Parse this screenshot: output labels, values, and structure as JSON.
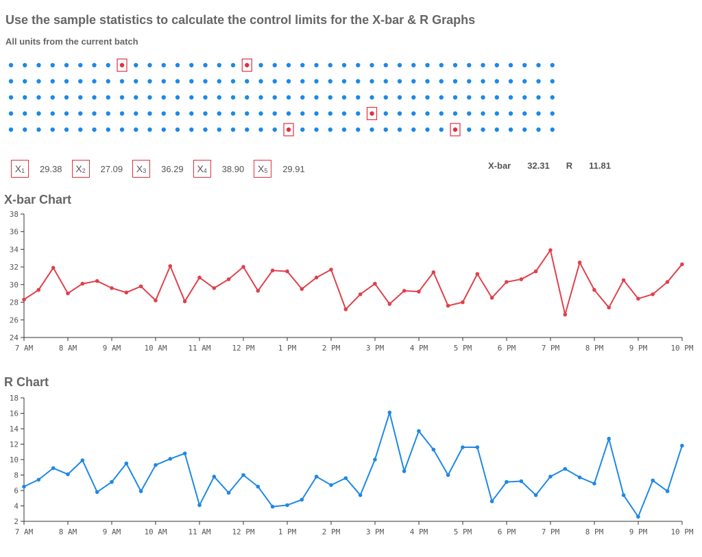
{
  "page": {
    "title": "Use the sample statistics to calculate the control limits for the X-bar & R Graphs",
    "subtitle": "All units from the current batch"
  },
  "colors": {
    "dot": "#1e88e5",
    "selected": "#e0303d",
    "xbar_line": "#e0404a",
    "r_line": "#1e88e5",
    "axis": "#333333"
  },
  "units": {
    "rows": 5,
    "cols": 40,
    "selected": [
      [
        0,
        8
      ],
      [
        0,
        17
      ],
      [
        3,
        26
      ],
      [
        4,
        20
      ],
      [
        4,
        32
      ]
    ]
  },
  "samples": [
    {
      "label": "X",
      "sub": "1",
      "value": "29.38"
    },
    {
      "label": "X",
      "sub": "2",
      "value": "27.09"
    },
    {
      "label": "X",
      "sub": "3",
      "value": "36.29"
    },
    {
      "label": "X",
      "sub": "4",
      "value": "38.90"
    },
    {
      "label": "X",
      "sub": "5",
      "value": "29.91"
    }
  ],
  "stats": {
    "xbar_label": "X-bar",
    "xbar_value": "32.31",
    "r_label": "R",
    "r_value": "11.81"
  },
  "chart_data": [
    {
      "type": "line",
      "title": "X-bar Chart",
      "ylim": [
        24,
        38
      ],
      "yticks": [
        24,
        26,
        28,
        30,
        32,
        34,
        36,
        38
      ],
      "xticks": [
        "7 AM",
        "8 AM",
        "9 AM",
        "10 AM",
        "11 AM",
        "12 PM",
        "1 PM",
        "2 PM",
        "3 PM",
        "4 PM",
        "5 PM",
        "6 PM",
        "7 PM",
        "8 PM",
        "9 PM",
        "10 PM"
      ],
      "x_start_hour": 7,
      "x_step_hours": 0.3333,
      "values": [
        28.3,
        29.4,
        31.9,
        29.0,
        30.1,
        30.4,
        29.6,
        29.1,
        29.8,
        28.2,
        32.1,
        28.1,
        30.8,
        29.6,
        30.6,
        32.0,
        29.3,
        31.6,
        31.5,
        29.5,
        30.8,
        31.7,
        27.2,
        28.9,
        30.1,
        27.8,
        29.3,
        29.2,
        31.4,
        27.6,
        28.0,
        31.2,
        28.5,
        30.3,
        30.6,
        31.5,
        33.9,
        26.6,
        32.5,
        29.4,
        27.4,
        30.5,
        28.4,
        28.9,
        30.3,
        32.3
      ]
    },
    {
      "type": "line",
      "title": "R Chart",
      "ylim": [
        2,
        18
      ],
      "yticks": [
        2,
        4,
        6,
        8,
        10,
        12,
        14,
        16,
        18
      ],
      "xticks": [
        "7 AM",
        "8 AM",
        "9 AM",
        "10 AM",
        "11 AM",
        "12 PM",
        "1 PM",
        "2 PM",
        "3 PM",
        "4 PM",
        "5 PM",
        "6 PM",
        "7 PM",
        "8 PM",
        "9 PM",
        "10 PM"
      ],
      "x_start_hour": 7,
      "x_step_hours": 0.3333,
      "values": [
        6.5,
        7.4,
        8.9,
        8.1,
        9.9,
        5.8,
        7.1,
        9.5,
        5.9,
        9.3,
        10.1,
        10.8,
        4.1,
        7.8,
        5.7,
        8.0,
        6.5,
        3.9,
        4.1,
        4.8,
        7.8,
        6.7,
        7.6,
        5.4,
        10.0,
        16.1,
        8.5,
        13.7,
        11.3,
        8.0,
        11.6,
        11.6,
        4.6,
        7.1,
        7.2,
        5.4,
        7.8,
        8.8,
        7.7,
        6.9,
        12.7,
        5.4,
        2.6,
        7.3,
        5.9,
        11.8
      ]
    }
  ]
}
